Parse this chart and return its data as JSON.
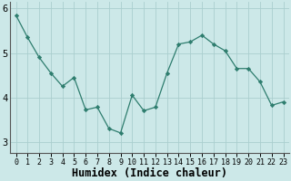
{
  "x": [
    0,
    1,
    2,
    3,
    4,
    5,
    6,
    7,
    8,
    9,
    10,
    11,
    12,
    13,
    14,
    15,
    16,
    17,
    18,
    19,
    20,
    21,
    22,
    23
  ],
  "y": [
    5.85,
    5.35,
    4.9,
    4.55,
    4.25,
    4.45,
    3.72,
    3.78,
    3.3,
    3.2,
    4.05,
    3.7,
    3.78,
    4.55,
    5.2,
    5.25,
    5.4,
    5.2,
    5.05,
    4.65,
    4.65,
    4.35,
    3.82,
    3.9
  ],
  "xlabel": "Humidex (Indice chaleur)",
  "ylim": [
    2.75,
    6.15
  ],
  "xlim": [
    -0.5,
    23.5
  ],
  "yticks": [
    3,
    4,
    5,
    6
  ],
  "xticks": [
    0,
    1,
    2,
    3,
    4,
    5,
    6,
    7,
    8,
    9,
    10,
    11,
    12,
    13,
    14,
    15,
    16,
    17,
    18,
    19,
    20,
    21,
    22,
    23
  ],
  "line_color": "#2e7d6e",
  "marker_color": "#2e7d6e",
  "bg_color": "#cce8e8",
  "plot_bg_color": "#cce8e8",
  "grid_color": "#aacece",
  "spine_color": "#555555",
  "xlabel_fontsize": 8.5,
  "xtick_fontsize": 6.0,
  "ytick_fontsize": 7.5
}
